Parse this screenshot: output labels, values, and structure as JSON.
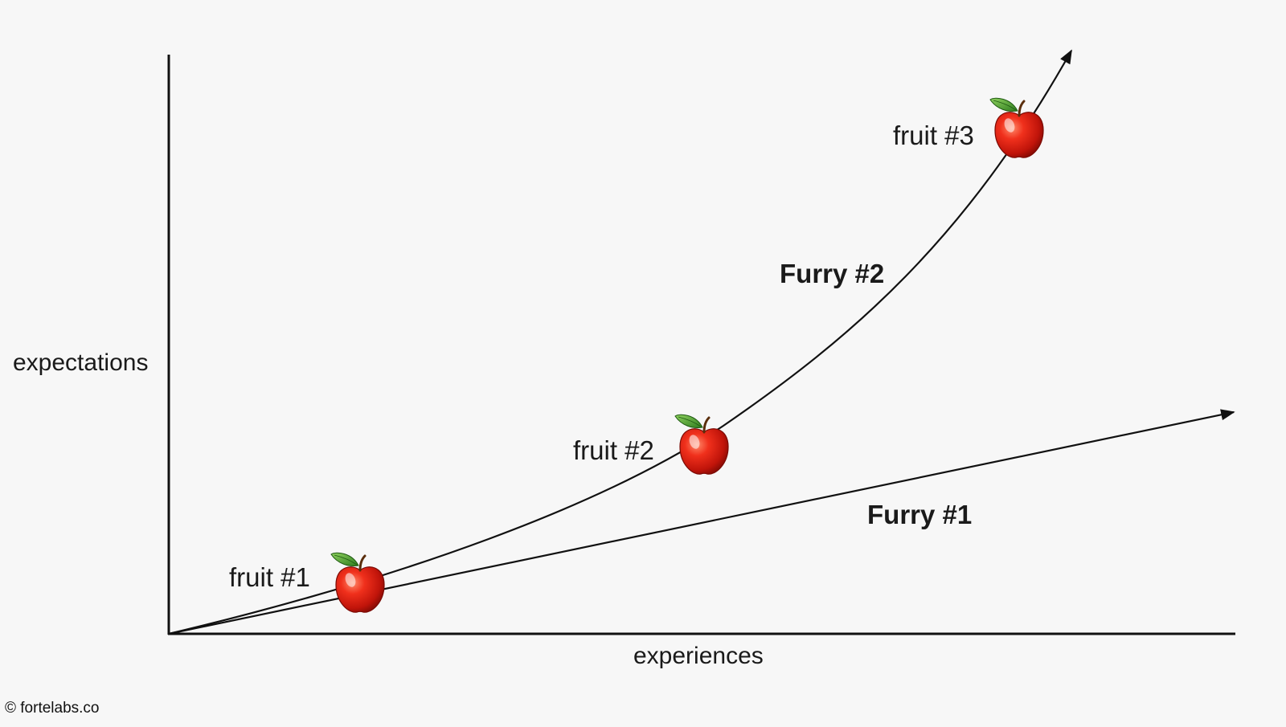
{
  "axes": {
    "y_label": "expectations",
    "x_label": "experiences"
  },
  "curves": [
    {
      "name": "Furry #1"
    },
    {
      "name": "Furry #2"
    }
  ],
  "fruits": [
    {
      "label": "fruit #1"
    },
    {
      "label": "fruit #2"
    },
    {
      "label": "fruit #3"
    }
  ],
  "icons": {
    "fruit": "red-apple-icon",
    "arrowhead": "arrowhead-icon"
  },
  "colors": {
    "background": "#f7f7f7",
    "line": "#111111",
    "apple_red": "#d8180c",
    "apple_leaf": "#3f9a28"
  },
  "footer": {
    "copyright": "© fortelabs.co"
  }
}
